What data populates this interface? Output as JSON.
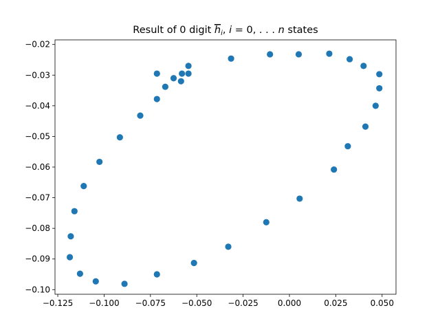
{
  "chart_data": {
    "type": "scatter",
    "title": {
      "pre": "Result of 0 digit ",
      "h": "h",
      "sub": "i",
      "mid": ", ",
      "i": "i",
      "eq": " = 0, . . . ",
      "n": "n",
      "post": " states"
    },
    "xlabel": "",
    "ylabel": "",
    "xlim": [
      -0.1265,
      0.0575
    ],
    "ylim": [
      -0.1015,
      -0.0185
    ],
    "xticks": [
      -0.125,
      -0.1,
      -0.075,
      -0.05,
      -0.025,
      0.0,
      0.025,
      0.05
    ],
    "xtick_labels": [
      "−0.125",
      "−0.100",
      "−0.075",
      "−0.050",
      "−0.025",
      "0.000",
      "0.025",
      "0.050"
    ],
    "yticks": [
      -0.02,
      -0.03,
      -0.04,
      -0.05,
      -0.06,
      -0.07,
      -0.08,
      -0.09,
      -0.1
    ],
    "ytick_labels": [
      "−0.02",
      "−0.03",
      "−0.04",
      "−0.05",
      "−0.06",
      "−0.07",
      "−0.08",
      "−0.09",
      "−0.10"
    ],
    "grid": false,
    "marker_color": "#1f77b4",
    "points": [
      {
        "x": -0.0715,
        "y": -0.0295
      },
      {
        "x": -0.0545,
        "y": -0.027
      },
      {
        "x": -0.0545,
        "y": -0.0295
      },
      {
        "x": -0.058,
        "y": -0.0295
      },
      {
        "x": -0.0625,
        "y": -0.031
      },
      {
        "x": -0.0585,
        "y": -0.032
      },
      {
        "x": -0.067,
        "y": -0.0338
      },
      {
        "x": -0.0715,
        "y": -0.0378
      },
      {
        "x": -0.0805,
        "y": -0.0432
      },
      {
        "x": -0.0915,
        "y": -0.0503
      },
      {
        "x": -0.1025,
        "y": -0.0583
      },
      {
        "x": -0.111,
        "y": -0.0662
      },
      {
        "x": -0.116,
        "y": -0.0744
      },
      {
        "x": -0.118,
        "y": -0.0826
      },
      {
        "x": -0.1185,
        "y": -0.0894
      },
      {
        "x": -0.113,
        "y": -0.0948
      },
      {
        "x": -0.1045,
        "y": -0.0973
      },
      {
        "x": -0.089,
        "y": -0.0981
      },
      {
        "x": -0.0715,
        "y": -0.095
      },
      {
        "x": -0.0515,
        "y": -0.0913
      },
      {
        "x": -0.033,
        "y": -0.086
      },
      {
        "x": -0.0125,
        "y": -0.078
      },
      {
        "x": 0.0055,
        "y": -0.0703
      },
      {
        "x": 0.024,
        "y": -0.0608
      },
      {
        "x": 0.0315,
        "y": -0.0532
      },
      {
        "x": 0.041,
        "y": -0.0468
      },
      {
        "x": 0.0465,
        "y": -0.04
      },
      {
        "x": 0.0485,
        "y": -0.0343
      },
      {
        "x": 0.0485,
        "y": -0.0297
      },
      {
        "x": 0.04,
        "y": -0.027
      },
      {
        "x": 0.0325,
        "y": -0.0248
      },
      {
        "x": 0.0215,
        "y": -0.023
      },
      {
        "x": 0.005,
        "y": -0.0232
      },
      {
        "x": -0.0105,
        "y": -0.0232
      },
      {
        "x": -0.0315,
        "y": -0.0246
      }
    ]
  }
}
